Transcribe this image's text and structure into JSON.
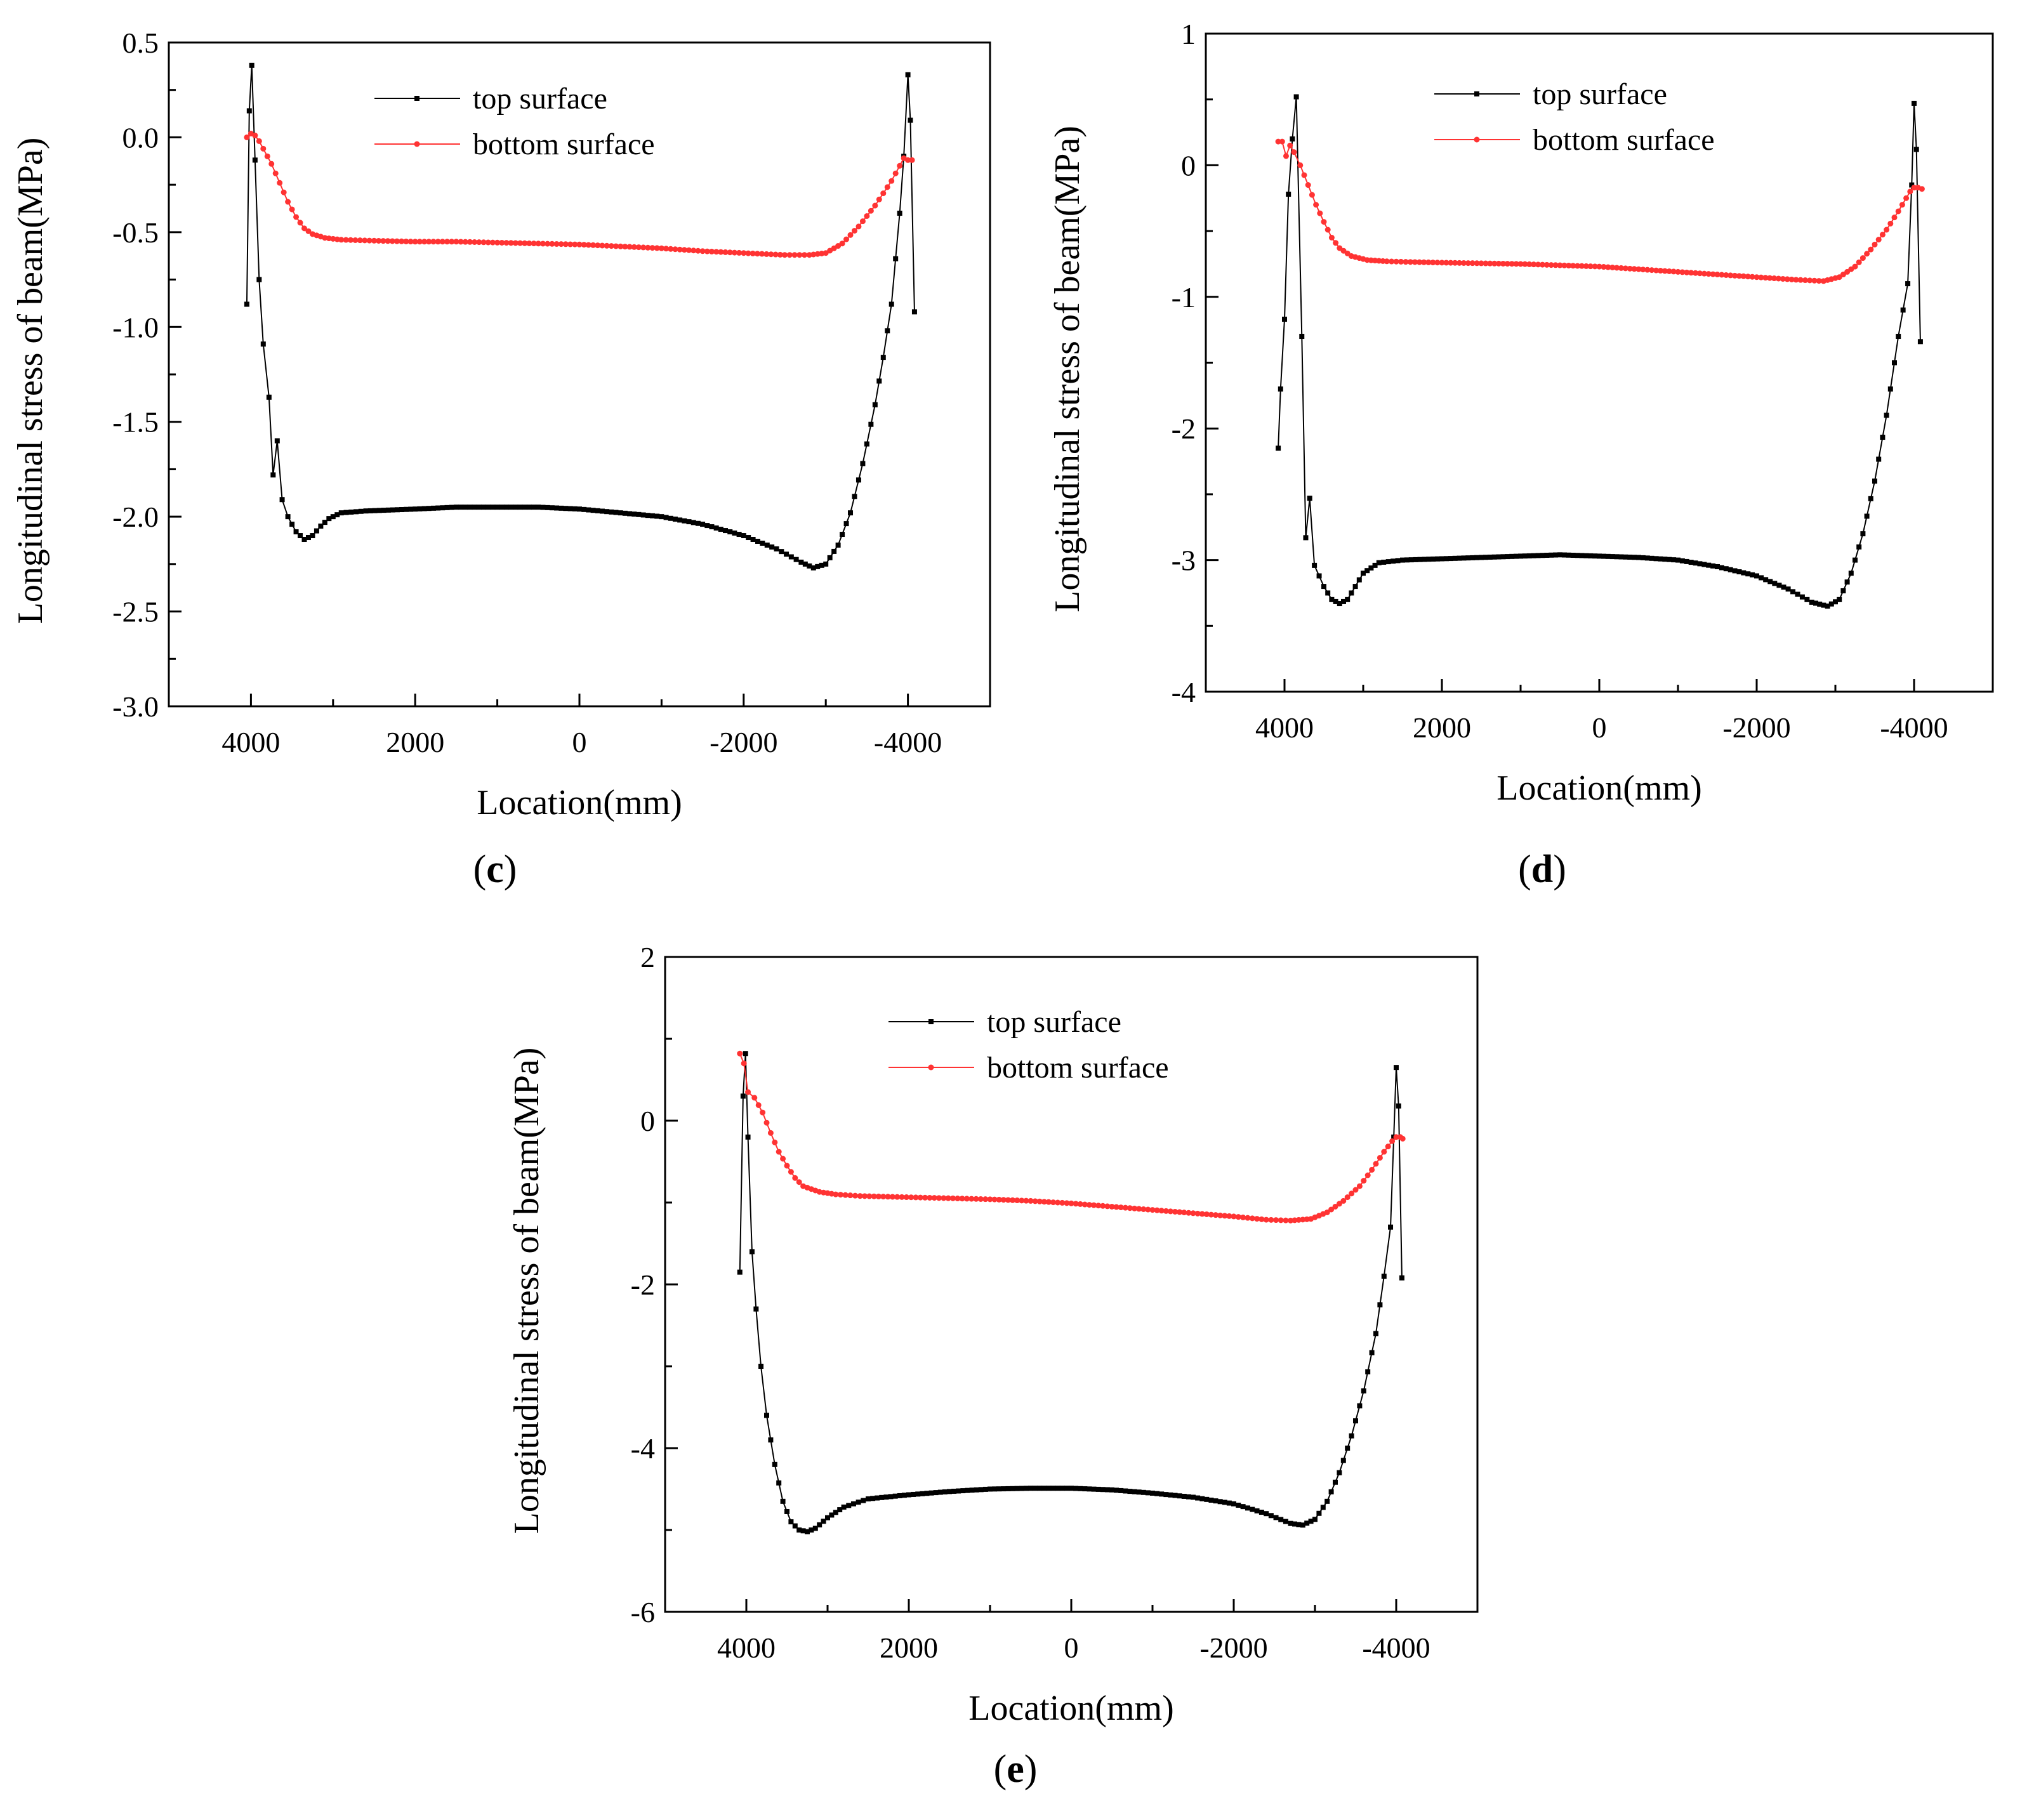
{
  "chart_data": [
    {
      "id": "c",
      "type": "line",
      "caption": "c",
      "xlabel": "Location(mm)",
      "ylabel": "Longitudinal stress of beam(MPa)",
      "xlim": [
        5000,
        -5000
      ],
      "ylim": [
        -3.0,
        0.5
      ],
      "xticks": [
        4000,
        2000,
        0,
        -2000,
        -4000
      ],
      "xtick_labels": [
        "4000",
        "2000",
        "0",
        "-2000",
        "-4000"
      ],
      "yticks": [
        0.5,
        0.0,
        -0.5,
        -1.0,
        -1.5,
        -2.0,
        -2.5,
        -3.0
      ],
      "ytick_labels": [
        "0.5",
        "0.0",
        "-0.5",
        "-1.0",
        "-1.5",
        "-2.0",
        "-2.5",
        "-3.0"
      ],
      "legend_position": "top-center",
      "series": [
        {
          "name": "top surface",
          "color": "#000000",
          "marker": "square",
          "points": [
            [
              4050,
              -0.88
            ],
            [
              4020,
              0.14
            ],
            [
              3990,
              0.38
            ],
            [
              3950,
              -0.12
            ],
            [
              3900,
              -0.75
            ],
            [
              3850,
              -1.09
            ],
            [
              3780,
              -1.37
            ],
            [
              3730,
              -1.78
            ],
            [
              3680,
              -1.6
            ],
            [
              3620,
              -1.91
            ],
            [
              3550,
              -2.0
            ],
            [
              3450,
              -2.08
            ],
            [
              3350,
              -2.12
            ],
            [
              3250,
              -2.1
            ],
            [
              3150,
              -2.05
            ],
            [
              3050,
              -2.01
            ],
            [
              2900,
              -1.98
            ],
            [
              2600,
              -1.97
            ],
            [
              2000,
              -1.96
            ],
            [
              1500,
              -1.95
            ],
            [
              1000,
              -1.95
            ],
            [
              500,
              -1.95
            ],
            [
              0,
              -1.96
            ],
            [
              -500,
              -1.98
            ],
            [
              -1000,
              -2.0
            ],
            [
              -1500,
              -2.04
            ],
            [
              -2000,
              -2.1
            ],
            [
              -2400,
              -2.17
            ],
            [
              -2700,
              -2.24
            ],
            [
              -2850,
              -2.27
            ],
            [
              -3000,
              -2.25
            ],
            [
              -3150,
              -2.15
            ],
            [
              -3300,
              -1.98
            ],
            [
              -3450,
              -1.72
            ],
            [
              -3600,
              -1.41
            ],
            [
              -3700,
              -1.16
            ],
            [
              -3800,
              -0.88
            ],
            [
              -3900,
              -0.4
            ],
            [
              -3950,
              -0.1
            ],
            [
              -4000,
              0.33
            ],
            [
              -4030,
              0.09
            ],
            [
              -4080,
              -0.92
            ]
          ]
        },
        {
          "name": "bottom surface",
          "color": "#ff3333",
          "marker": "circle",
          "points": [
            [
              4050,
              0.0
            ],
            [
              4000,
              0.02
            ],
            [
              3950,
              0.01
            ],
            [
              3900,
              -0.02
            ],
            [
              3850,
              -0.06
            ],
            [
              3750,
              -0.14
            ],
            [
              3650,
              -0.24
            ],
            [
              3550,
              -0.34
            ],
            [
              3450,
              -0.42
            ],
            [
              3350,
              -0.48
            ],
            [
              3250,
              -0.51
            ],
            [
              3100,
              -0.53
            ],
            [
              2900,
              -0.54
            ],
            [
              2500,
              -0.545
            ],
            [
              2000,
              -0.55
            ],
            [
              1500,
              -0.55
            ],
            [
              1000,
              -0.555
            ],
            [
              500,
              -0.56
            ],
            [
              0,
              -0.565
            ],
            [
              -500,
              -0.575
            ],
            [
              -1000,
              -0.585
            ],
            [
              -1500,
              -0.6
            ],
            [
              -2000,
              -0.61
            ],
            [
              -2500,
              -0.62
            ],
            [
              -2800,
              -0.62
            ],
            [
              -3000,
              -0.61
            ],
            [
              -3200,
              -0.56
            ],
            [
              -3400,
              -0.47
            ],
            [
              -3600,
              -0.36
            ],
            [
              -3800,
              -0.23
            ],
            [
              -3900,
              -0.15
            ],
            [
              -3950,
              -0.11
            ],
            [
              -4000,
              -0.12
            ],
            [
              -4050,
              -0.12
            ]
          ]
        }
      ]
    },
    {
      "id": "d",
      "type": "line",
      "caption": "d",
      "xlabel": "Location(mm)",
      "ylabel": "Longitudinal stress of beam(MPa)",
      "xlim": [
        5000,
        -5000
      ],
      "ylim": [
        -4,
        1
      ],
      "xticks": [
        4000,
        2000,
        0,
        -2000,
        -4000
      ],
      "xtick_labels": [
        "4000",
        "2000",
        "0",
        "-2000",
        "-4000"
      ],
      "yticks": [
        1,
        0,
        -1,
        -2,
        -3,
        -4
      ],
      "ytick_labels": [
        "1",
        "0",
        "-1",
        "-2",
        "-3",
        "-4"
      ],
      "legend_position": "top-center",
      "series": [
        {
          "name": "top surface",
          "color": "#000000",
          "marker": "square",
          "points": [
            [
              4080,
              -2.15
            ],
            [
              4050,
              -1.7
            ],
            [
              4000,
              -1.17
            ],
            [
              3950,
              -0.22
            ],
            [
              3900,
              0.2
            ],
            [
              3850,
              0.52
            ],
            [
              3780,
              -1.3
            ],
            [
              3730,
              -2.83
            ],
            [
              3680,
              -2.53
            ],
            [
              3620,
              -3.04
            ],
            [
              3500,
              -3.2
            ],
            [
              3400,
              -3.3
            ],
            [
              3300,
              -3.33
            ],
            [
              3200,
              -3.3
            ],
            [
              3100,
              -3.2
            ],
            [
              3000,
              -3.1
            ],
            [
              2800,
              -3.02
            ],
            [
              2500,
              -3.0
            ],
            [
              2000,
              -2.99
            ],
            [
              1500,
              -2.98
            ],
            [
              1000,
              -2.97
            ],
            [
              500,
              -2.96
            ],
            [
              0,
              -2.97
            ],
            [
              -500,
              -2.98
            ],
            [
              -1000,
              -3.0
            ],
            [
              -1500,
              -3.05
            ],
            [
              -2000,
              -3.12
            ],
            [
              -2400,
              -3.22
            ],
            [
              -2700,
              -3.32
            ],
            [
              -2900,
              -3.35
            ],
            [
              -3050,
              -3.3
            ],
            [
              -3200,
              -3.1
            ],
            [
              -3350,
              -2.8
            ],
            [
              -3500,
              -2.4
            ],
            [
              -3650,
              -1.9
            ],
            [
              -3800,
              -1.3
            ],
            [
              -3920,
              -0.9
            ],
            [
              -3970,
              -0.15
            ],
            [
              -4000,
              0.47
            ],
            [
              -4030,
              0.12
            ],
            [
              -4080,
              -1.34
            ]
          ]
        },
        {
          "name": "bottom surface",
          "color": "#ff3333",
          "marker": "circle",
          "points": [
            [
              4080,
              0.18
            ],
            [
              4030,
              0.18
            ],
            [
              3980,
              0.07
            ],
            [
              3930,
              0.15
            ],
            [
              3880,
              0.1
            ],
            [
              3800,
              0.0
            ],
            [
              3700,
              -0.15
            ],
            [
              3600,
              -0.3
            ],
            [
              3500,
              -0.43
            ],
            [
              3400,
              -0.55
            ],
            [
              3300,
              -0.63
            ],
            [
              3150,
              -0.69
            ],
            [
              2950,
              -0.72
            ],
            [
              2700,
              -0.73
            ],
            [
              2400,
              -0.735
            ],
            [
              2000,
              -0.74
            ],
            [
              1500,
              -0.745
            ],
            [
              1000,
              -0.75
            ],
            [
              500,
              -0.76
            ],
            [
              0,
              -0.77
            ],
            [
              -500,
              -0.79
            ],
            [
              -1000,
              -0.81
            ],
            [
              -1500,
              -0.83
            ],
            [
              -2000,
              -0.85
            ],
            [
              -2500,
              -0.87
            ],
            [
              -2850,
              -0.88
            ],
            [
              -3050,
              -0.85
            ],
            [
              -3250,
              -0.77
            ],
            [
              -3450,
              -0.64
            ],
            [
              -3650,
              -0.49
            ],
            [
              -3800,
              -0.35
            ],
            [
              -3900,
              -0.25
            ],
            [
              -3950,
              -0.2
            ],
            [
              -4000,
              -0.17
            ],
            [
              -4050,
              -0.17
            ],
            [
              -4100,
              -0.18
            ]
          ]
        }
      ]
    },
    {
      "id": "e",
      "type": "line",
      "caption": "e",
      "xlabel": "Location(mm)",
      "ylabel": "Longitudinal stress of beam(MPa)",
      "xlim": [
        5000,
        -5000
      ],
      "ylim": [
        -6,
        2
      ],
      "xticks": [
        4000,
        2000,
        0,
        -2000,
        -4000
      ],
      "xtick_labels": [
        "4000",
        "2000",
        "0",
        "-2000",
        "-4000"
      ],
      "yticks": [
        2,
        0,
        -2,
        -4,
        -6
      ],
      "ytick_labels": [
        "2",
        "0",
        "-2",
        "-4",
        "-6"
      ],
      "legend_position": "top-center",
      "series": [
        {
          "name": "top surface",
          "color": "#000000",
          "marker": "square",
          "points": [
            [
              4080,
              -1.85
            ],
            [
              4040,
              0.3
            ],
            [
              4010,
              0.82
            ],
            [
              3980,
              -0.2
            ],
            [
              3930,
              -1.6
            ],
            [
              3880,
              -2.3
            ],
            [
              3820,
              -3.0
            ],
            [
              3750,
              -3.6
            ],
            [
              3650,
              -4.2
            ],
            [
              3550,
              -4.65
            ],
            [
              3450,
              -4.9
            ],
            [
              3350,
              -5.0
            ],
            [
              3250,
              -5.02
            ],
            [
              3150,
              -4.98
            ],
            [
              3000,
              -4.85
            ],
            [
              2800,
              -4.72
            ],
            [
              2500,
              -4.62
            ],
            [
              2000,
              -4.57
            ],
            [
              1500,
              -4.53
            ],
            [
              1000,
              -4.5
            ],
            [
              500,
              -4.49
            ],
            [
              0,
              -4.49
            ],
            [
              -500,
              -4.51
            ],
            [
              -1000,
              -4.55
            ],
            [
              -1500,
              -4.6
            ],
            [
              -2000,
              -4.68
            ],
            [
              -2400,
              -4.8
            ],
            [
              -2700,
              -4.92
            ],
            [
              -2850,
              -4.94
            ],
            [
              -3000,
              -4.87
            ],
            [
              -3150,
              -4.65
            ],
            [
              -3300,
              -4.3
            ],
            [
              -3450,
              -3.85
            ],
            [
              -3600,
              -3.3
            ],
            [
              -3750,
              -2.6
            ],
            [
              -3850,
              -1.9
            ],
            [
              -3930,
              -1.3
            ],
            [
              -3970,
              -0.2
            ],
            [
              -4000,
              0.65
            ],
            [
              -4030,
              0.18
            ],
            [
              -4070,
              -1.92
            ]
          ]
        },
        {
          "name": "bottom surface",
          "color": "#ff3333",
          "marker": "circle",
          "points": [
            [
              4080,
              0.82
            ],
            [
              4030,
              0.7
            ],
            [
              3980,
              0.35
            ],
            [
              3900,
              0.28
            ],
            [
              3800,
              0.1
            ],
            [
              3700,
              -0.15
            ],
            [
              3600,
              -0.38
            ],
            [
              3500,
              -0.55
            ],
            [
              3400,
              -0.7
            ],
            [
              3300,
              -0.8
            ],
            [
              3100,
              -0.87
            ],
            [
              2900,
              -0.9
            ],
            [
              2600,
              -0.92
            ],
            [
              2200,
              -0.93
            ],
            [
              1800,
              -0.94
            ],
            [
              1400,
              -0.95
            ],
            [
              1000,
              -0.96
            ],
            [
              500,
              -0.98
            ],
            [
              0,
              -1.01
            ],
            [
              -500,
              -1.05
            ],
            [
              -1000,
              -1.09
            ],
            [
              -1500,
              -1.13
            ],
            [
              -2000,
              -1.17
            ],
            [
              -2400,
              -1.21
            ],
            [
              -2700,
              -1.22
            ],
            [
              -2950,
              -1.2
            ],
            [
              -3150,
              -1.12
            ],
            [
              -3350,
              -0.98
            ],
            [
              -3550,
              -0.8
            ],
            [
              -3700,
              -0.6
            ],
            [
              -3850,
              -0.38
            ],
            [
              -3950,
              -0.25
            ],
            [
              -4000,
              -0.2
            ],
            [
              -4050,
              -0.2
            ],
            [
              -4080,
              -0.22
            ]
          ]
        }
      ]
    }
  ]
}
